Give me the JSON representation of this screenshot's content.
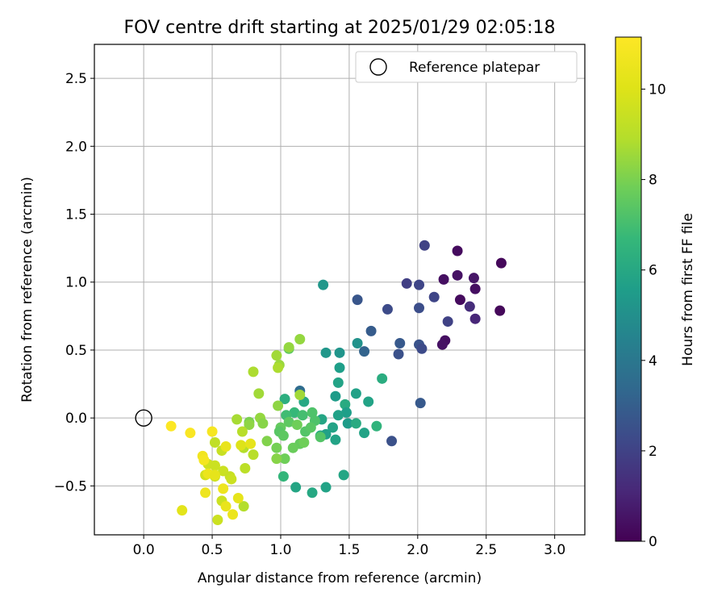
{
  "chart_data": {
    "type": "scatter",
    "title": "FOV centre drift starting at 2025/01/29 02:05:18",
    "xlabel": "Angular distance from reference (arcmin)",
    "ylabel": "Rotation from reference (arcmin)",
    "xlim": [
      -0.36,
      3.22
    ],
    "ylim": [
      -0.86,
      2.75
    ],
    "grid": true,
    "xticks": [
      0.0,
      0.5,
      1.0,
      1.5,
      2.0,
      2.5,
      3.0
    ],
    "xtick_labels": [
      "0.0",
      "0.5",
      "1.0",
      "1.5",
      "2.0",
      "2.5",
      "3.0"
    ],
    "yticks": [
      -0.5,
      0.0,
      0.5,
      1.0,
      1.5,
      2.0,
      2.5
    ],
    "ytick_labels": [
      "−0.5",
      "0.0",
      "0.5",
      "1.0",
      "1.5",
      "2.0",
      "2.5"
    ],
    "legend": {
      "position": "upper right",
      "entries": [
        {
          "label": "Reference platepar",
          "marker": "hollow-circle",
          "color": "#000000"
        }
      ]
    },
    "reference_point": {
      "x": 0.0,
      "y": 0.0
    },
    "colorbar": {
      "label": "Hours from first FF file",
      "min": 0,
      "max": 11.15,
      "ticks": [
        0,
        2,
        4,
        6,
        8,
        10
      ],
      "tick_labels": [
        "0",
        "2",
        "4",
        "6",
        "8",
        "10"
      ],
      "colormap": "viridis"
    },
    "points": [
      {
        "x": 2.61,
        "y": 1.14,
        "h": 0.2
      },
      {
        "x": 2.29,
        "y": 1.23,
        "h": 0.3
      },
      {
        "x": 2.41,
        "y": 1.03,
        "h": 0.6
      },
      {
        "x": 2.6,
        "y": 0.79,
        "h": 0.2
      },
      {
        "x": 2.42,
        "y": 0.95,
        "h": 0.4
      },
      {
        "x": 2.31,
        "y": 0.87,
        "h": 0.3
      },
      {
        "x": 2.29,
        "y": 1.05,
        "h": 0.5
      },
      {
        "x": 2.19,
        "y": 1.02,
        "h": 0.4
      },
      {
        "x": 2.2,
        "y": 0.57,
        "h": 0.4
      },
      {
        "x": 2.18,
        "y": 0.54,
        "h": 0.5
      },
      {
        "x": 2.42,
        "y": 0.73,
        "h": 1.1
      },
      {
        "x": 2.38,
        "y": 0.82,
        "h": 1.3
      },
      {
        "x": 2.22,
        "y": 0.71,
        "h": 2.0
      },
      {
        "x": 2.12,
        "y": 0.89,
        "h": 2.1
      },
      {
        "x": 2.05,
        "y": 1.27,
        "h": 2.0
      },
      {
        "x": 1.92,
        "y": 0.99,
        "h": 1.9
      },
      {
        "x": 2.01,
        "y": 0.98,
        "h": 2.1
      },
      {
        "x": 2.01,
        "y": 0.81,
        "h": 2.4
      },
      {
        "x": 1.78,
        "y": 0.8,
        "h": 2.3
      },
      {
        "x": 2.01,
        "y": 0.54,
        "h": 2.6
      },
      {
        "x": 2.03,
        "y": 0.51,
        "h": 2.3
      },
      {
        "x": 1.87,
        "y": 0.55,
        "h": 2.8
      },
      {
        "x": 1.86,
        "y": 0.47,
        "h": 2.5
      },
      {
        "x": 2.02,
        "y": 0.11,
        "h": 2.8
      },
      {
        "x": 1.81,
        "y": -0.17,
        "h": 2.5
      },
      {
        "x": 1.56,
        "y": 0.87,
        "h": 2.7
      },
      {
        "x": 1.66,
        "y": 0.64,
        "h": 2.9
      },
      {
        "x": 1.61,
        "y": 0.49,
        "h": 3.2
      },
      {
        "x": 1.31,
        "y": 0.98,
        "h": 5.3
      },
      {
        "x": 1.56,
        "y": 0.55,
        "h": 5.1
      },
      {
        "x": 1.43,
        "y": 0.48,
        "h": 5.2
      },
      {
        "x": 1.33,
        "y": 0.48,
        "h": 5.3
      },
      {
        "x": 1.43,
        "y": 0.37,
        "h": 5.6
      },
      {
        "x": 1.42,
        "y": 0.26,
        "h": 5.8
      },
      {
        "x": 1.74,
        "y": 0.29,
        "h": 6.2
      },
      {
        "x": 1.55,
        "y": 0.18,
        "h": 5.7
      },
      {
        "x": 1.4,
        "y": 0.16,
        "h": 5.5
      },
      {
        "x": 1.47,
        "y": 0.1,
        "h": 6.1
      },
      {
        "x": 1.64,
        "y": 0.12,
        "h": 5.8
      },
      {
        "x": 1.48,
        "y": 0.04,
        "h": 5.6
      },
      {
        "x": 1.42,
        "y": 0.02,
        "h": 5.7
      },
      {
        "x": 1.3,
        "y": -0.01,
        "h": 5.9
      },
      {
        "x": 1.49,
        "y": -0.04,
        "h": 5.5
      },
      {
        "x": 1.55,
        "y": -0.04,
        "h": 6.1
      },
      {
        "x": 1.7,
        "y": -0.06,
        "h": 6.5
      },
      {
        "x": 1.38,
        "y": -0.07,
        "h": 5.8
      },
      {
        "x": 1.61,
        "y": -0.11,
        "h": 5.8
      },
      {
        "x": 1.29,
        "y": -0.13,
        "h": 6.0
      },
      {
        "x": 1.33,
        "y": -0.12,
        "h": 5.7
      },
      {
        "x": 1.4,
        "y": -0.16,
        "h": 5.8
      },
      {
        "x": 1.46,
        "y": -0.42,
        "h": 5.9
      },
      {
        "x": 1.33,
        "y": -0.51,
        "h": 5.8
      },
      {
        "x": 1.11,
        "y": -0.51,
        "h": 5.9
      },
      {
        "x": 1.23,
        "y": -0.55,
        "h": 6.0
      },
      {
        "x": 1.02,
        "y": -0.43,
        "h": 6.6
      },
      {
        "x": 1.14,
        "y": 0.2,
        "h": 3.5
      },
      {
        "x": 1.17,
        "y": 0.12,
        "h": 6.0
      },
      {
        "x": 1.03,
        "y": 0.14,
        "h": 6.3
      },
      {
        "x": 1.1,
        "y": 0.04,
        "h": 6.7
      },
      {
        "x": 1.04,
        "y": 0.02,
        "h": 6.9
      },
      {
        "x": 1.16,
        "y": 0.02,
        "h": 7.0
      },
      {
        "x": 1.23,
        "y": 0.04,
        "h": 7.2
      },
      {
        "x": 1.25,
        "y": -0.02,
        "h": 7.2
      },
      {
        "x": 1.18,
        "y": -0.1,
        "h": 7.3
      },
      {
        "x": 1.22,
        "y": -0.07,
        "h": 7.4
      },
      {
        "x": 1.06,
        "y": -0.03,
        "h": 7.5
      },
      {
        "x": 1.0,
        "y": -0.07,
        "h": 7.6
      },
      {
        "x": 0.99,
        "y": -0.1,
        "h": 7.4
      },
      {
        "x": 1.02,
        "y": -0.13,
        "h": 7.5
      },
      {
        "x": 1.29,
        "y": -0.14,
        "h": 7.3
      },
      {
        "x": 1.12,
        "y": -0.05,
        "h": 7.8
      },
      {
        "x": 1.14,
        "y": -0.19,
        "h": 7.6
      },
      {
        "x": 1.17,
        "y": -0.18,
        "h": 7.8
      },
      {
        "x": 1.09,
        "y": -0.22,
        "h": 7.7
      },
      {
        "x": 0.97,
        "y": -0.22,
        "h": 7.9
      },
      {
        "x": 0.9,
        "y": -0.17,
        "h": 8.1
      },
      {
        "x": 1.03,
        "y": -0.3,
        "h": 7.8
      },
      {
        "x": 0.97,
        "y": -0.3,
        "h": 8.2
      },
      {
        "x": 1.06,
        "y": 0.51,
        "h": 7.5
      },
      {
        "x": 1.06,
        "y": 0.52,
        "h": 8.4
      },
      {
        "x": 1.14,
        "y": 0.58,
        "h": 8.4
      },
      {
        "x": 0.97,
        "y": 0.46,
        "h": 8.6
      },
      {
        "x": 0.99,
        "y": 0.39,
        "h": 8.5
      },
      {
        "x": 0.98,
        "y": 0.37,
        "h": 8.8
      },
      {
        "x": 0.8,
        "y": 0.34,
        "h": 8.8
      },
      {
        "x": 0.84,
        "y": 0.18,
        "h": 8.6
      },
      {
        "x": 1.14,
        "y": 0.17,
        "h": 8.6
      },
      {
        "x": 0.98,
        "y": 0.09,
        "h": 8.3
      },
      {
        "x": 0.85,
        "y": 0.0,
        "h": 8.4
      },
      {
        "x": 0.87,
        "y": -0.04,
        "h": 8.2
      },
      {
        "x": 0.77,
        "y": -0.03,
        "h": 8.0
      },
      {
        "x": 0.77,
        "y": -0.05,
        "h": 8.3
      },
      {
        "x": 0.68,
        "y": -0.01,
        "h": 8.7
      },
      {
        "x": 0.72,
        "y": -0.1,
        "h": 9.0
      },
      {
        "x": 0.8,
        "y": -0.27,
        "h": 9.0
      },
      {
        "x": 0.73,
        "y": -0.22,
        "h": 8.9
      },
      {
        "x": 0.74,
        "y": -0.37,
        "h": 9.1
      },
      {
        "x": 0.73,
        "y": -0.65,
        "h": 8.9
      },
      {
        "x": 0.52,
        "y": -0.18,
        "h": 9.2
      },
      {
        "x": 0.57,
        "y": -0.24,
        "h": 9.4
      },
      {
        "x": 0.47,
        "y": -0.34,
        "h": 9.6
      },
      {
        "x": 0.45,
        "y": -0.42,
        "h": 9.7
      },
      {
        "x": 0.52,
        "y": -0.35,
        "h": 9.5
      },
      {
        "x": 0.52,
        "y": -0.43,
        "h": 9.5
      },
      {
        "x": 0.58,
        "y": -0.39,
        "h": 9.5
      },
      {
        "x": 0.63,
        "y": -0.43,
        "h": 9.4
      },
      {
        "x": 0.64,
        "y": -0.45,
        "h": 9.5
      },
      {
        "x": 0.57,
        "y": -0.61,
        "h": 9.5
      },
      {
        "x": 0.54,
        "y": -0.75,
        "h": 9.5
      },
      {
        "x": 0.71,
        "y": -0.2,
        "h": 10.0
      },
      {
        "x": 0.78,
        "y": -0.19,
        "h": 10.3
      },
      {
        "x": 0.6,
        "y": -0.21,
        "h": 10.4
      },
      {
        "x": 0.69,
        "y": -0.59,
        "h": 10.3
      },
      {
        "x": 0.58,
        "y": -0.52,
        "h": 10.6
      },
      {
        "x": 0.6,
        "y": -0.65,
        "h": 10.4
      },
      {
        "x": 0.65,
        "y": -0.71,
        "h": 10.5
      },
      {
        "x": 0.45,
        "y": -0.55,
        "h": 10.6
      },
      {
        "x": 0.43,
        "y": -0.28,
        "h": 10.7
      },
      {
        "x": 0.44,
        "y": -0.31,
        "h": 10.8
      },
      {
        "x": 0.47,
        "y": -0.41,
        "h": 10.5
      },
      {
        "x": 0.52,
        "y": -0.42,
        "h": 10.3
      },
      {
        "x": 0.5,
        "y": -0.1,
        "h": 10.9
      },
      {
        "x": 0.34,
        "y": -0.11,
        "h": 11.0
      },
      {
        "x": 0.2,
        "y": -0.06,
        "h": 11.1
      },
      {
        "x": 0.28,
        "y": -0.68,
        "h": 10.2
      }
    ]
  }
}
